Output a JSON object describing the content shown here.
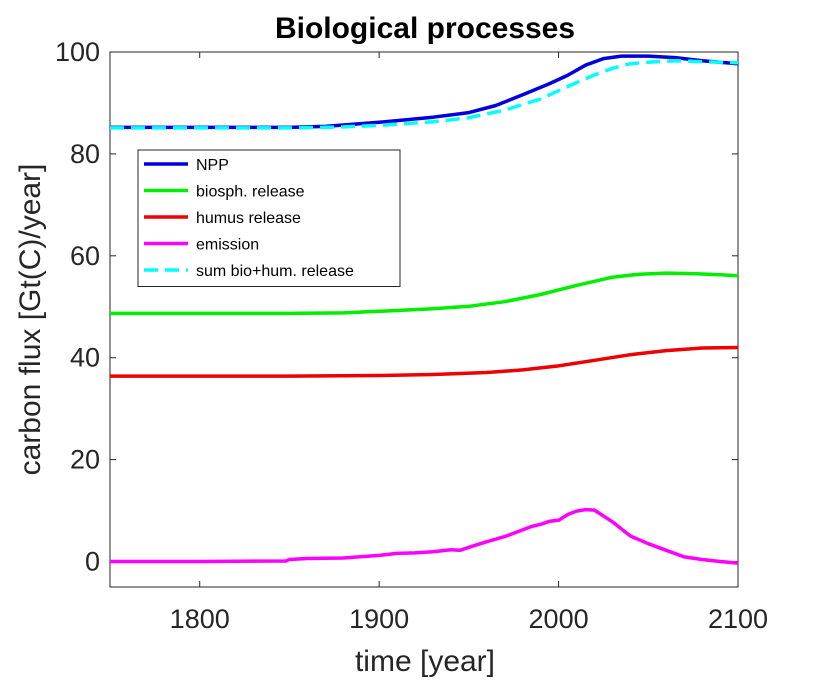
{
  "chart_data": {
    "type": "line",
    "title": "Biological processes",
    "xlabel": "time [year]",
    "ylabel": "carbon flux [Gt(C)/year]",
    "xlim": [
      1750,
      2100
    ],
    "ylim": [
      -5,
      100
    ],
    "xticks": [
      1800,
      1900,
      2000,
      2100
    ],
    "yticks": [
      0,
      20,
      40,
      60,
      80,
      100
    ],
    "grid": false,
    "legend_position": "top-left",
    "series": [
      {
        "name": "NPP",
        "color": "#0000dd",
        "dash": "solid",
        "x": [
          1750,
          1800,
          1850,
          1870,
          1900,
          1930,
          1950,
          1965,
          1980,
          1995,
          2005,
          2015,
          2025,
          2035,
          2050,
          2065,
          2080,
          2100
        ],
        "y": [
          85.2,
          85.2,
          85.2,
          85.4,
          86.2,
          87.2,
          88.1,
          89.5,
          91.6,
          93.8,
          95.4,
          97.4,
          98.7,
          99.2,
          99.2,
          98.9,
          98.3,
          97.7
        ]
      },
      {
        "name": "biosph. release",
        "color": "#00ee00",
        "dash": "solid",
        "x": [
          1750,
          1800,
          1850,
          1880,
          1900,
          1930,
          1950,
          1970,
          1990,
          2010,
          2030,
          2045,
          2060,
          2075,
          2090,
          2100
        ],
        "y": [
          48.7,
          48.7,
          48.7,
          48.8,
          49.1,
          49.6,
          50.1,
          51.0,
          52.4,
          54.2,
          55.8,
          56.4,
          56.6,
          56.5,
          56.3,
          56.1
        ]
      },
      {
        "name": "humus release",
        "color": "#ee0000",
        "dash": "solid",
        "x": [
          1750,
          1800,
          1850,
          1900,
          1930,
          1960,
          1980,
          2000,
          2020,
          2040,
          2060,
          2080,
          2100
        ],
        "y": [
          36.4,
          36.4,
          36.4,
          36.5,
          36.7,
          37.1,
          37.6,
          38.4,
          39.5,
          40.6,
          41.4,
          41.9,
          42.0
        ]
      },
      {
        "name": "emission",
        "color": "#ff00ff",
        "dash": "solid",
        "x": [
          1750,
          1800,
          1848,
          1850,
          1860,
          1880,
          1900,
          1910,
          1920,
          1930,
          1940,
          1945,
          1950,
          1960,
          1970,
          1980,
          1985,
          1990,
          1995,
          2000,
          2005,
          2010,
          2015,
          2020,
          2030,
          2040,
          2050,
          2060,
          2070,
          2080,
          2090,
          2100
        ],
        "y": [
          0.0,
          0.0,
          0.1,
          0.4,
          0.6,
          0.7,
          1.2,
          1.6,
          1.7,
          1.9,
          2.3,
          2.2,
          2.8,
          3.9,
          4.9,
          6.2,
          6.9,
          7.3,
          7.9,
          8.1,
          9.2,
          9.9,
          10.2,
          10.1,
          7.8,
          5.0,
          3.5,
          2.2,
          0.9,
          0.4,
          0.0,
          -0.3
        ]
      },
      {
        "name": "sum bio+hum. release",
        "color": "#00ffff",
        "dash": "dashed",
        "x": [
          1750,
          1800,
          1850,
          1880,
          1900,
          1930,
          1950,
          1970,
          1990,
          2000,
          2010,
          2020,
          2030,
          2040,
          2050,
          2065,
          2080,
          2100
        ],
        "y": [
          85.1,
          85.1,
          85.1,
          85.3,
          85.6,
          86.3,
          87.1,
          88.6,
          90.8,
          92.4,
          94.0,
          95.5,
          96.8,
          97.7,
          98.0,
          98.3,
          98.1,
          97.9
        ]
      }
    ]
  }
}
